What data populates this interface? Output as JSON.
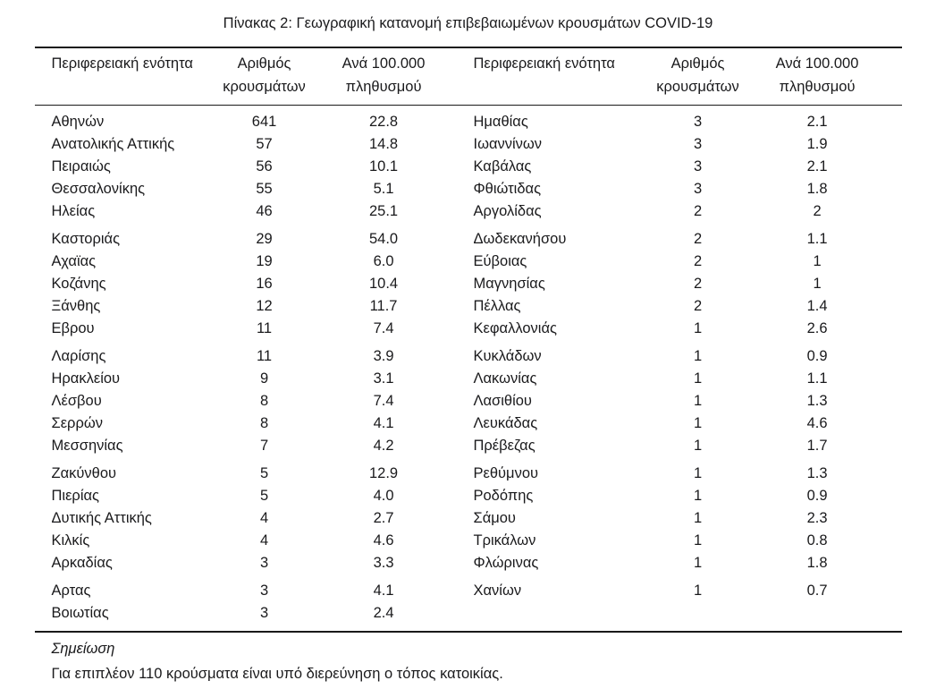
{
  "title": "Πίνακας 2: Γεωγραφική κατανομή επιβεβαιωμένων κρουσμάτων COVID-19",
  "table": {
    "group_size": 5,
    "headers": {
      "region": "Περιφερειακή ενότητα",
      "cases": "Αριθμός\nκρουσμάτων",
      "rate": "Ανά 100.000\nπληθυσμού"
    },
    "rows_left": [
      {
        "region": "Αθηνών",
        "cases": "641",
        "rate": "22.8"
      },
      {
        "region": "Ανατολικής Αττικής",
        "cases": "57",
        "rate": "14.8"
      },
      {
        "region": "Πειραιώς",
        "cases": "56",
        "rate": "10.1"
      },
      {
        "region": "Θεσσαλονίκης",
        "cases": "55",
        "rate": "5.1"
      },
      {
        "region": "Ηλείας",
        "cases": "46",
        "rate": "25.1"
      },
      {
        "region": "Καστοριάς",
        "cases": "29",
        "rate": "54.0"
      },
      {
        "region": "Αχαϊας",
        "cases": "19",
        "rate": "6.0"
      },
      {
        "region": "Κοζάνης",
        "cases": "16",
        "rate": "10.4"
      },
      {
        "region": "Ξάνθης",
        "cases": "12",
        "rate": "11.7"
      },
      {
        "region": "Εβρου",
        "cases": "11",
        "rate": "7.4"
      },
      {
        "region": "Λαρίσης",
        "cases": "11",
        "rate": "3.9"
      },
      {
        "region": "Ηρακλείου",
        "cases": "9",
        "rate": "3.1"
      },
      {
        "region": "Λέσβου",
        "cases": "8",
        "rate": "7.4"
      },
      {
        "region": "Σερρών",
        "cases": "8",
        "rate": "4.1"
      },
      {
        "region": "Μεσσηνίας",
        "cases": "7",
        "rate": "4.2"
      },
      {
        "region": "Ζακύνθου",
        "cases": "5",
        "rate": "12.9"
      },
      {
        "region": "Πιερίας",
        "cases": "5",
        "rate": "4.0"
      },
      {
        "region": "Δυτικής Αττικής",
        "cases": "4",
        "rate": "2.7"
      },
      {
        "region": "Κιλκίς",
        "cases": "4",
        "rate": "4.6"
      },
      {
        "region": "Αρκαδίας",
        "cases": "3",
        "rate": "3.3"
      },
      {
        "region": "Αρτας",
        "cases": "3",
        "rate": "4.1"
      },
      {
        "region": "Βοιωτίας",
        "cases": "3",
        "rate": "2.4"
      }
    ],
    "rows_right": [
      {
        "region": "Ημαθίας",
        "cases": "3",
        "rate": "2.1"
      },
      {
        "region": "Ιωαννίνων",
        "cases": "3",
        "rate": "1.9"
      },
      {
        "region": "Καβάλας",
        "cases": "3",
        "rate": "2.1"
      },
      {
        "region": "Φθιώτιδας",
        "cases": "3",
        "rate": "1.8"
      },
      {
        "region": "Αργολίδας",
        "cases": "2",
        "rate": "2"
      },
      {
        "region": "Δωδεκανήσου",
        "cases": "2",
        "rate": "1.1"
      },
      {
        "region": "Εύβοιας",
        "cases": "2",
        "rate": "1"
      },
      {
        "region": "Μαγνησίας",
        "cases": "2",
        "rate": "1"
      },
      {
        "region": "Πέλλας",
        "cases": "2",
        "rate": "1.4"
      },
      {
        "region": "Κεφαλλονιάς",
        "cases": "1",
        "rate": "2.6"
      },
      {
        "region": "Κυκλάδων",
        "cases": "1",
        "rate": "0.9"
      },
      {
        "region": "Λακωνίας",
        "cases": "1",
        "rate": "1.1"
      },
      {
        "region": "Λασιθίου",
        "cases": "1",
        "rate": "1.3"
      },
      {
        "region": "Λευκάδας",
        "cases": "1",
        "rate": "4.6"
      },
      {
        "region": "Πρέβεζας",
        "cases": "1",
        "rate": "1.7"
      },
      {
        "region": "Ρεθύμνου",
        "cases": "1",
        "rate": "1.3"
      },
      {
        "region": "Ροδόπης",
        "cases": "1",
        "rate": "0.9"
      },
      {
        "region": "Σάμου",
        "cases": "1",
        "rate": "2.3"
      },
      {
        "region": "Τρικάλων",
        "cases": "1",
        "rate": "0.8"
      },
      {
        "region": "Φλώρινας",
        "cases": "1",
        "rate": "1.8"
      },
      {
        "region": "Χανίων",
        "cases": "1",
        "rate": "0.7"
      }
    ]
  },
  "note": {
    "label": "Σημείωση",
    "text": "Για επιπλέον 110 κρούσματα είναι υπό διερεύνηση ο τόπος κατοικίας."
  }
}
